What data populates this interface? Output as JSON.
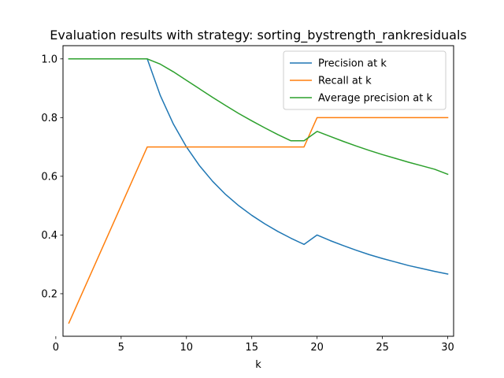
{
  "chart_data": {
    "type": "line",
    "title": "Evaluation results with strategy: sorting_bystrength_rankresiduals",
    "xlabel": "k",
    "ylabel": "",
    "xlim": [
      0.55,
      30.45
    ],
    "ylim": [
      0.055,
      1.045
    ],
    "xticks": [
      0,
      5,
      10,
      15,
      20,
      25,
      30
    ],
    "yticks": [
      0.2,
      0.4,
      0.6,
      0.8,
      1.0
    ],
    "legend_position": "upper-right",
    "grid": false,
    "x": [
      1,
      2,
      3,
      4,
      5,
      6,
      7,
      8,
      9,
      10,
      11,
      12,
      13,
      14,
      15,
      16,
      17,
      18,
      19,
      20,
      21,
      22,
      23,
      24,
      25,
      26,
      27,
      28,
      29,
      30
    ],
    "series": [
      {
        "name": "Precision at k",
        "color": "#1f77b4",
        "values": [
          1.0,
          1.0,
          1.0,
          1.0,
          1.0,
          1.0,
          1.0,
          0.875,
          0.778,
          0.7,
          0.636,
          0.583,
          0.538,
          0.5,
          0.467,
          0.438,
          0.412,
          0.389,
          0.368,
          0.4,
          0.381,
          0.364,
          0.348,
          0.333,
          0.32,
          0.308,
          0.296,
          0.286,
          0.276,
          0.267
        ]
      },
      {
        "name": "Recall at k",
        "color": "#ff7f0e",
        "values": [
          0.1,
          0.2,
          0.3,
          0.4,
          0.5,
          0.6,
          0.7,
          0.7,
          0.7,
          0.7,
          0.7,
          0.7,
          0.7,
          0.7,
          0.7,
          0.7,
          0.7,
          0.7,
          0.7,
          0.8,
          0.8,
          0.8,
          0.8,
          0.8,
          0.8,
          0.8,
          0.8,
          0.8,
          0.8,
          0.8
        ]
      },
      {
        "name": "Average precision at k",
        "color": "#2ca02c",
        "values": [
          1.0,
          1.0,
          1.0,
          1.0,
          1.0,
          1.0,
          1.0,
          0.982,
          0.956,
          0.927,
          0.898,
          0.869,
          0.841,
          0.814,
          0.789,
          0.765,
          0.742,
          0.721,
          0.721,
          0.753,
          0.736,
          0.719,
          0.703,
          0.688,
          0.674,
          0.661,
          0.648,
          0.636,
          0.624,
          0.607
        ]
      }
    ]
  }
}
